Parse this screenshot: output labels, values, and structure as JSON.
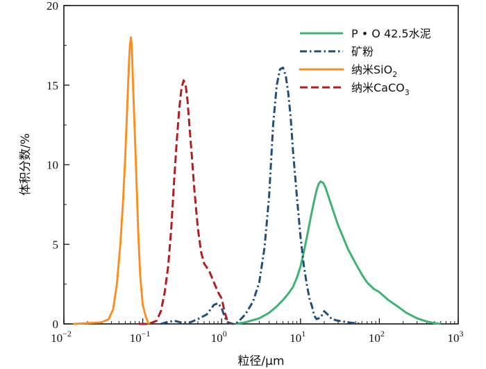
{
  "chart_data": {
    "type": "line",
    "title": "",
    "xlabel": "粒径/μm",
    "ylabel": "体积分数/%",
    "xscale": "log",
    "xlim": [
      0.01,
      1000
    ],
    "ylim": [
      0,
      20
    ],
    "x_ticks": [
      {
        "value": 0.01,
        "base": "10",
        "exp": "−2"
      },
      {
        "value": 0.1,
        "base": "10",
        "exp": "−1"
      },
      {
        "value": 1,
        "base": "10",
        "exp": "0"
      },
      {
        "value": 10,
        "base": "10",
        "exp": "1"
      },
      {
        "value": 100,
        "base": "10",
        "exp": "2"
      },
      {
        "value": 1000,
        "base": "10",
        "exp": "3"
      }
    ],
    "y_ticks": [
      0,
      5,
      10,
      15,
      20
    ],
    "legend_position": "top-right",
    "series": [
      {
        "name": "P • O 42.5水泥",
        "legend_main": "P • O 42.5水泥",
        "legend_sub": "",
        "color": "#3cb371",
        "dash": "solid",
        "points": [
          [
            1.5,
            0.0
          ],
          [
            2.0,
            0.1
          ],
          [
            3.0,
            0.35
          ],
          [
            4.0,
            0.7
          ],
          [
            5.0,
            1.1
          ],
          [
            6.0,
            1.5
          ],
          [
            7.0,
            1.9
          ],
          [
            8.0,
            2.3
          ],
          [
            9.0,
            2.9
          ],
          [
            10.0,
            3.6
          ],
          [
            11.0,
            4.5
          ],
          [
            12.0,
            5.4
          ],
          [
            13.0,
            6.3
          ],
          [
            14.0,
            7.1
          ],
          [
            15.0,
            7.8
          ],
          [
            16.0,
            8.4
          ],
          [
            17.0,
            8.8
          ],
          [
            18.0,
            8.95
          ],
          [
            19.5,
            8.85
          ],
          [
            21.0,
            8.5
          ],
          [
            23.0,
            7.9
          ],
          [
            26.0,
            7.1
          ],
          [
            30.0,
            6.2
          ],
          [
            35.0,
            5.4
          ],
          [
            40.0,
            4.7
          ],
          [
            50.0,
            3.8
          ],
          [
            60.0,
            3.1
          ],
          [
            70.0,
            2.6
          ],
          [
            85.0,
            2.2
          ],
          [
            100.0,
            2.0
          ],
          [
            130.0,
            1.5
          ],
          [
            170.0,
            1.1
          ],
          [
            220.0,
            0.7
          ],
          [
            300.0,
            0.35
          ],
          [
            400.0,
            0.15
          ],
          [
            500.0,
            0.05
          ],
          [
            600.0,
            0.0
          ]
        ]
      },
      {
        "name": "矿粉",
        "legend_main": "矿粉",
        "legend_sub": "",
        "color": "#1f4e79",
        "dash": "dashdot",
        "points": [
          [
            0.17,
            0.0
          ],
          [
            0.2,
            0.1
          ],
          [
            0.25,
            0.2
          ],
          [
            0.3,
            0.1
          ],
          [
            0.4,
            0.1
          ],
          [
            0.5,
            0.3
          ],
          [
            0.65,
            0.6
          ],
          [
            0.8,
            1.2
          ],
          [
            0.9,
            1.3
          ],
          [
            1.0,
            1.0
          ],
          [
            1.1,
            0.4
          ],
          [
            1.2,
            0.1
          ],
          [
            1.4,
            0.0
          ],
          [
            1.6,
            0.1
          ],
          [
            2.0,
            0.6
          ],
          [
            2.5,
            1.4
          ],
          [
            3.0,
            2.6
          ],
          [
            3.5,
            4.8
          ],
          [
            4.0,
            8.0
          ],
          [
            4.5,
            12.5
          ],
          [
            5.0,
            15.0
          ],
          [
            5.5,
            16.0
          ],
          [
            6.0,
            16.1
          ],
          [
            6.5,
            15.6
          ],
          [
            7.0,
            14.5
          ],
          [
            7.5,
            13.0
          ],
          [
            8.0,
            11.0
          ],
          [
            9.0,
            8.0
          ],
          [
            10.0,
            5.5
          ],
          [
            11.0,
            3.7
          ],
          [
            12.0,
            2.5
          ],
          [
            13.0,
            1.6
          ],
          [
            14.0,
            1.1
          ],
          [
            15.0,
            0.5
          ],
          [
            16.0,
            0.3
          ],
          [
            18.0,
            0.4
          ],
          [
            20.0,
            0.8
          ],
          [
            22.0,
            0.6
          ],
          [
            25.0,
            0.3
          ],
          [
            30.0,
            0.2
          ],
          [
            40.0,
            0.1
          ],
          [
            60.0,
            0.0
          ]
        ]
      },
      {
        "name": "纳米SiO2",
        "legend_main": "纳米SiO",
        "legend_sub": "2",
        "color": "#ff8c1a",
        "dash": "dot",
        "points": [
          [
            0.0135,
            0.0
          ],
          [
            0.02,
            0.05
          ],
          [
            0.03,
            0.1
          ],
          [
            0.037,
            0.3
          ],
          [
            0.042,
            0.9
          ],
          [
            0.047,
            2.5
          ],
          [
            0.052,
            5.0
          ],
          [
            0.056,
            7.5
          ],
          [
            0.06,
            10.5
          ],
          [
            0.064,
            14.0
          ],
          [
            0.067,
            16.5
          ],
          [
            0.069,
            17.6
          ],
          [
            0.071,
            18.0
          ],
          [
            0.073,
            17.2
          ],
          [
            0.076,
            14.5
          ],
          [
            0.08,
            11.5
          ],
          [
            0.084,
            8.5
          ],
          [
            0.088,
            5.5
          ],
          [
            0.093,
            3.0
          ],
          [
            0.1,
            1.2
          ],
          [
            0.11,
            0.4
          ],
          [
            0.12,
            0.0
          ]
        ]
      },
      {
        "name": "纳米CaCO3",
        "legend_main": "纳米CaCO",
        "legend_sub": "3",
        "color": "#b01e1e",
        "dash": "dash",
        "points": [
          [
            0.09,
            0.0
          ],
          [
            0.12,
            0.0
          ],
          [
            0.15,
            0.2
          ],
          [
            0.17,
            0.8
          ],
          [
            0.19,
            2.0
          ],
          [
            0.21,
            3.6
          ],
          [
            0.23,
            6.0
          ],
          [
            0.25,
            9.0
          ],
          [
            0.27,
            11.5
          ],
          [
            0.29,
            13.5
          ],
          [
            0.31,
            14.8
          ],
          [
            0.33,
            15.3
          ],
          [
            0.35,
            15.0
          ],
          [
            0.37,
            14.0
          ],
          [
            0.39,
            12.5
          ],
          [
            0.42,
            10.5
          ],
          [
            0.45,
            8.5
          ],
          [
            0.5,
            6.0
          ],
          [
            0.55,
            4.5
          ],
          [
            0.6,
            3.8
          ],
          [
            0.7,
            3.3
          ],
          [
            0.8,
            2.6
          ],
          [
            0.9,
            2.0
          ],
          [
            1.0,
            1.6
          ],
          [
            1.1,
            0.7
          ],
          [
            1.2,
            0.1
          ],
          [
            1.3,
            0.0
          ]
        ]
      }
    ]
  }
}
